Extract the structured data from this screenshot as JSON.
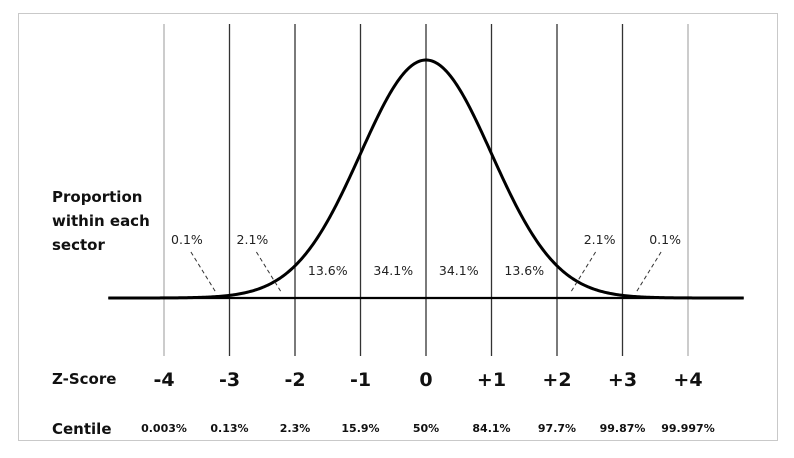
{
  "chart_data": {
    "type": "area",
    "distribution": "standard normal",
    "xlim": [
      -4.85,
      4.85
    ],
    "row_labels": {
      "proportion": [
        "Proportion",
        "within each",
        "sector"
      ],
      "zscore": "Z-Score",
      "centile": "Centile"
    },
    "z_ticks": [
      {
        "z": -4,
        "label": "-4",
        "centile": "0.003%"
      },
      {
        "z": -3,
        "label": "-3",
        "centile": "0.13%"
      },
      {
        "z": -2,
        "label": "-2",
        "centile": "2.3%"
      },
      {
        "z": -1,
        "label": "-1",
        "centile": "15.9%"
      },
      {
        "z": 0,
        "label": "0",
        "centile": "50%"
      },
      {
        "z": 1,
        "label": "+1",
        "centile": "84.1%"
      },
      {
        "z": 2,
        "label": "+2",
        "centile": "97.7%"
      },
      {
        "z": 3,
        "label": "+3",
        "centile": "99.87%"
      },
      {
        "z": 4,
        "label": "+4",
        "centile": "99.997%"
      }
    ],
    "sector_percentages": [
      {
        "from": -4,
        "to": -3,
        "label": "0.1%",
        "callout": true
      },
      {
        "from": -3,
        "to": -2,
        "label": "2.1%",
        "callout": true
      },
      {
        "from": -2,
        "to": -1,
        "label": "13.6%",
        "callout": false
      },
      {
        "from": -1,
        "to": 0,
        "label": "34.1%",
        "callout": false
      },
      {
        "from": 0,
        "to": 1,
        "label": "34.1%",
        "callout": false
      },
      {
        "from": 1,
        "to": 2,
        "label": "13.6%",
        "callout": false
      },
      {
        "from": 2,
        "to": 3,
        "label": "2.1%",
        "callout": true
      },
      {
        "from": 3,
        "to": 4,
        "label": "0.1%",
        "callout": true
      }
    ],
    "grid": true,
    "colors": {
      "curve": "#000000",
      "gridline": "#333333",
      "lightline": "#9a9a9a"
    }
  }
}
